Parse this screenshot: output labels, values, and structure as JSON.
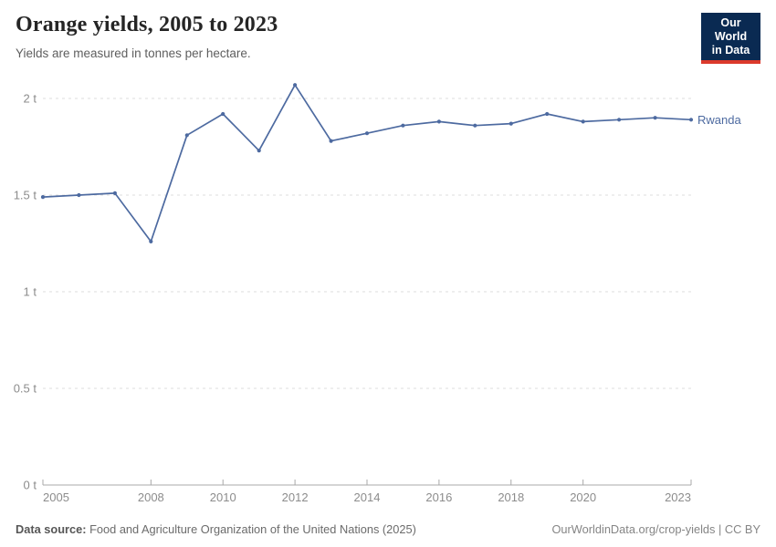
{
  "header": {
    "title": "Orange yields, 2005 to 2023",
    "subtitle": "Yields are measured in tonnes per hectare.",
    "logo": {
      "line1": "Our World",
      "line2": "in Data",
      "bg_color": "#0a2a52",
      "accent_color": "#dc3a2c"
    }
  },
  "chart_data": {
    "type": "line",
    "title": "Orange yields, 2005 to 2023",
    "subtitle": "Yields are measured in tonnes per hectare.",
    "xlabel": "",
    "ylabel": "",
    "xlim": [
      2005,
      2023
    ],
    "ylim": [
      0,
      2.15
    ],
    "grid": "horizontal-dashed",
    "legend_position": "end-of-line-label",
    "x": [
      2005,
      2006,
      2007,
      2008,
      2009,
      2010,
      2011,
      2012,
      2013,
      2014,
      2015,
      2016,
      2017,
      2018,
      2019,
      2020,
      2021,
      2022,
      2023
    ],
    "series": [
      {
        "name": "Rwanda",
        "color": "#4d6aa0",
        "values": [
          1.49,
          1.5,
          1.51,
          1.26,
          1.81,
          1.92,
          1.73,
          2.07,
          1.78,
          1.82,
          1.86,
          1.88,
          1.86,
          1.87,
          1.92,
          1.88,
          1.89,
          1.9,
          1.89
        ]
      }
    ],
    "x_ticks": [
      {
        "v": 2005,
        "label": "2005"
      },
      {
        "v": 2008,
        "label": "2008"
      },
      {
        "v": 2010,
        "label": "2010"
      },
      {
        "v": 2012,
        "label": "2012"
      },
      {
        "v": 2014,
        "label": "2014"
      },
      {
        "v": 2016,
        "label": "2016"
      },
      {
        "v": 2018,
        "label": "2018"
      },
      {
        "v": 2020,
        "label": "2020"
      },
      {
        "v": 2023,
        "label": "2023"
      }
    ],
    "y_ticks": [
      {
        "v": 0,
        "label": "0 t"
      },
      {
        "v": 0.5,
        "label": "0.5 t"
      },
      {
        "v": 1,
        "label": "1 t"
      },
      {
        "v": 1.5,
        "label": "1.5 t"
      },
      {
        "v": 2,
        "label": "2 t"
      }
    ]
  },
  "colors": {
    "line": "#4d6aa0",
    "gridline": "#dcdcdc",
    "axis": "#a8a8a8",
    "tick_label": "#8c8c8c"
  },
  "footer": {
    "source_label": "Data source:",
    "source_value": "Food and Agriculture Organization of the United Nations (2025)",
    "credit": "OurWorldinData.org/crop-yields | CC BY"
  }
}
